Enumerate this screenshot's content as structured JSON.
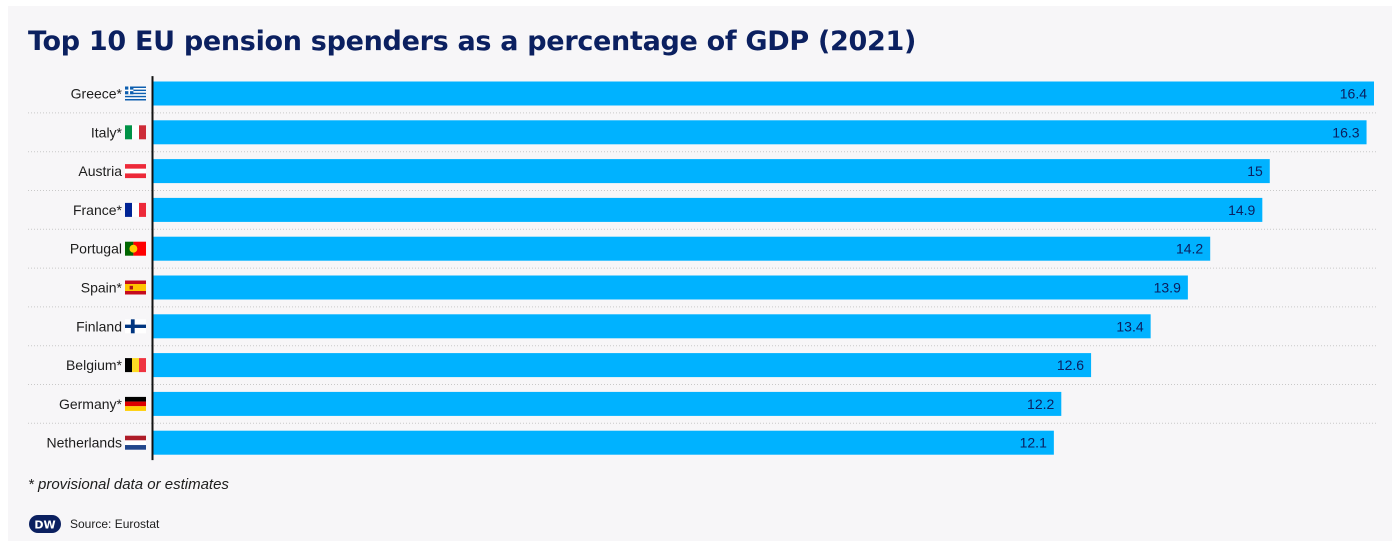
{
  "title": "Top 10 EU pension spenders as a percentage of GDP (2021)",
  "note": "* provisional data or estimates",
  "source": "Source: Eurostat",
  "logo_text": "DW",
  "colors": {
    "bar": "#00b2ff",
    "value_text": "#0b2060",
    "axis": "#111111",
    "gridline": "#c9c9c9"
  },
  "chart_data": {
    "type": "bar",
    "orientation": "horizontal",
    "title": "Top 10 EU pension spenders as a percentage of GDP (2021)",
    "categories": [
      "Greece*",
      "Italy*",
      "Austria",
      "France*",
      "Portugal",
      "Spain*",
      "Finland",
      "Belgium*",
      "Germany*",
      "Netherlands"
    ],
    "flags": [
      "greece-flag",
      "italy-flag",
      "austria-flag",
      "france-flag",
      "portugal-flag",
      "spain-flag",
      "finland-flag",
      "belgium-flag",
      "germany-flag",
      "netherlands-flag"
    ],
    "values": [
      16.4,
      16.3,
      15,
      14.9,
      14.2,
      13.9,
      13.4,
      12.6,
      12.2,
      12.1
    ],
    "xlim": [
      0,
      16.4
    ],
    "xlabel": "",
    "ylabel": "",
    "grid": false,
    "data_labels": true
  }
}
